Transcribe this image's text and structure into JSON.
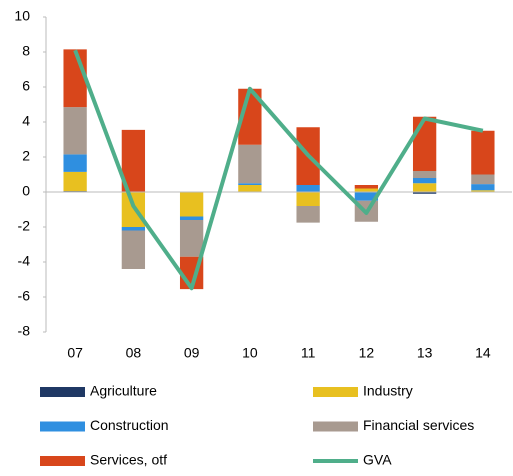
{
  "chart_data": {
    "type": "bar",
    "stacked": true,
    "categories": [
      "07",
      "08",
      "09",
      "10",
      "11",
      "12",
      "13",
      "14"
    ],
    "series": [
      {
        "name": "Agriculture",
        "color": "#1f3864",
        "values": [
          0.05,
          0,
          0,
          0,
          0,
          0,
          -0.1,
          0
        ]
      },
      {
        "name": "Industry",
        "color": "#e8c020",
        "values": [
          1.1,
          -2.0,
          -1.4,
          0.4,
          -0.8,
          0.2,
          0.5,
          0.1
        ]
      },
      {
        "name": "Construction",
        "color": "#2f8fe0",
        "values": [
          1.0,
          -0.2,
          -0.2,
          0.1,
          0.4,
          -0.5,
          0.3,
          0.35
        ]
      },
      {
        "name": "Financial services",
        "color": "#a89a90",
        "values": [
          2.7,
          -2.2,
          -2.1,
          2.2,
          -0.95,
          -1.2,
          0.4,
          0.55
        ]
      },
      {
        "name": "Services, otf",
        "color": "#d8461b",
        "values": [
          3.3,
          3.55,
          -1.85,
          3.2,
          3.3,
          0.2,
          3.1,
          2.5
        ]
      },
      {
        "name": "GVA",
        "type": "line",
        "color": "#4fae8a",
        "values": [
          8.1,
          -0.8,
          -5.5,
          5.9,
          2.1,
          -1.2,
          4.2,
          3.5
        ]
      }
    ],
    "ylim": [
      -8,
      10
    ],
    "yticks": [
      -8,
      -6,
      -4,
      -2,
      0,
      2,
      4,
      6,
      8,
      10
    ]
  }
}
